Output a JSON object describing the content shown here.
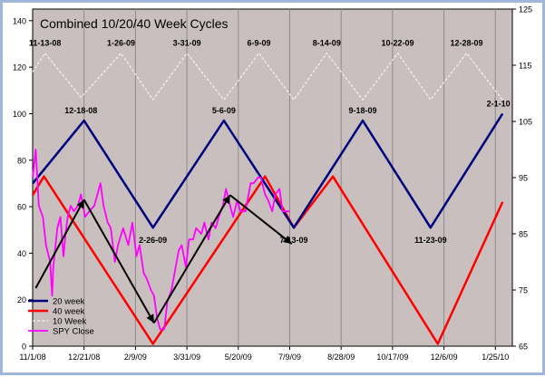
{
  "chart_data": {
    "type": "line",
    "title": "Combined 10/20/40 Week Cycles",
    "x_ticks": [
      "11/1/08",
      "12/21/08",
      "2/9/09",
      "3/31/09",
      "5/20/09",
      "7/9/09",
      "8/28/09",
      "10/17/09",
      "12/6/09",
      "1/25/10"
    ],
    "y_left_ticks": [
      "0",
      "20",
      "40",
      "60",
      "80",
      "100",
      "120",
      "140"
    ],
    "y_right_ticks": [
      "65",
      "75",
      "85",
      "95",
      "105",
      "115",
      "125"
    ],
    "ylim_left": [
      0,
      145
    ],
    "ylim_right": [
      65,
      125
    ],
    "grid": "vertical",
    "legend_position": "bottom-left",
    "colors": {
      "plot_bg": "#c9bfbf",
      "w20": "#00007f",
      "w40": "#ff0000",
      "w10": "#ffffff",
      "spy": "#ff00ff",
      "arrow": "#000000",
      "grid": "#8f8a8a"
    },
    "series": [
      {
        "key": "w20",
        "name": "20 week",
        "points": [
          [
            "11/1/08",
            70
          ],
          [
            "12/21/08",
            97
          ],
          [
            "2/26/09",
            51
          ],
          [
            "5/6/09",
            97
          ],
          [
            "7/13/09",
            51
          ],
          [
            "9/18/09",
            97
          ],
          [
            "11/23/09",
            51
          ],
          [
            "2/1/10",
            100
          ]
        ]
      },
      {
        "key": "w40",
        "name": "40 week",
        "points": [
          [
            "11/1/08",
            65
          ],
          [
            "11/12/08",
            73
          ],
          [
            "2/26/09",
            1
          ],
          [
            "6/15/09",
            73
          ],
          [
            "7/13/09",
            51
          ],
          [
            "8/20/09",
            73
          ],
          [
            "11/30/09",
            1
          ],
          [
            "2/1/10",
            62
          ]
        ]
      },
      {
        "key": "w10",
        "name": "10 Week",
        "points": [
          [
            "11/1/08",
            118
          ],
          [
            "11/13/08",
            126
          ],
          [
            "12/18/08",
            107
          ],
          [
            "1/26/09",
            126
          ],
          [
            "2/26/09",
            106
          ],
          [
            "3/31/09",
            126
          ],
          [
            "5/6/09",
            106
          ],
          [
            "6/9/09",
            126
          ],
          [
            "7/13/09",
            106
          ],
          [
            "8/14/09",
            126
          ],
          [
            "9/18/09",
            106
          ],
          [
            "10/22/09",
            126
          ],
          [
            "11/23/09",
            106
          ],
          [
            "12/28/09",
            126
          ],
          [
            "2/1/10",
            106
          ]
        ]
      },
      {
        "key": "spy",
        "name": "SPY Close",
        "points": [
          [
            "11/1/08",
            95
          ],
          [
            "11/4/08",
            100
          ],
          [
            "11/7/08",
            90
          ],
          [
            "11/11/08",
            88
          ],
          [
            "11/14/08",
            83
          ],
          [
            "11/18/08",
            80
          ],
          [
            "11/20/08",
            74
          ],
          [
            "11/21/08",
            79
          ],
          [
            "11/25/08",
            86
          ],
          [
            "11/28/08",
            88
          ],
          [
            "12/1/08",
            81
          ],
          [
            "12/3/08",
            85
          ],
          [
            "12/5/08",
            88
          ],
          [
            "12/8/08",
            90
          ],
          [
            "12/11/08",
            89
          ],
          [
            "12/15/08",
            90
          ],
          [
            "12/18/08",
            92
          ],
          [
            "12/22/08",
            88
          ],
          [
            "12/26/08",
            89
          ],
          [
            "12/31/08",
            90
          ],
          [
            "1/6/09",
            94
          ],
          [
            "1/9/09",
            90
          ],
          [
            "1/13/09",
            87
          ],
          [
            "1/16/09",
            86
          ],
          [
            "1/20/09",
            80
          ],
          [
            "1/23/09",
            83
          ],
          [
            "1/28/09",
            86
          ],
          [
            "2/2/09",
            83
          ],
          [
            "2/6/09",
            87
          ],
          [
            "2/10/09",
            81
          ],
          [
            "2/13/09",
            83
          ],
          [
            "2/17/09",
            78
          ],
          [
            "2/20/09",
            77
          ],
          [
            "2/24/09",
            75
          ],
          [
            "2/27/09",
            74
          ],
          [
            "3/2/09",
            70
          ],
          [
            "3/5/09",
            68
          ],
          [
            "3/9/09",
            68
          ],
          [
            "3/12/09",
            73
          ],
          [
            "3/16/09",
            75
          ],
          [
            "3/19/09",
            78
          ],
          [
            "3/23/09",
            82
          ],
          [
            "3/26/09",
            83
          ],
          [
            "3/30/09",
            79
          ],
          [
            "4/2/09",
            84
          ],
          [
            "4/6/09",
            84
          ],
          [
            "4/9/09",
            86
          ],
          [
            "4/14/09",
            85
          ],
          [
            "4/17/09",
            87
          ],
          [
            "4/21/09",
            84
          ],
          [
            "4/24/09",
            87
          ],
          [
            "4/28/09",
            86
          ],
          [
            "5/1/09",
            88
          ],
          [
            "5/5/09",
            90
          ],
          [
            "5/8/09",
            93
          ],
          [
            "5/12/09",
            90
          ],
          [
            "5/15/09",
            88
          ],
          [
            "5/19/09",
            91
          ],
          [
            "5/22/09",
            89
          ],
          [
            "5/27/09",
            89
          ],
          [
            "6/1/09",
            94
          ],
          [
            "6/4/09",
            94
          ],
          [
            "6/8/09",
            95
          ],
          [
            "6/11/09",
            95
          ],
          [
            "6/15/09",
            92
          ],
          [
            "6/18/09",
            91
          ],
          [
            "6/22/09",
            89
          ],
          [
            "6/25/09",
            92
          ],
          [
            "6/29/09",
            93
          ],
          [
            "7/2/09",
            89
          ],
          [
            "7/6/09",
            89
          ],
          [
            "7/9/09",
            89
          ]
        ]
      }
    ],
    "arrows": [
      {
        "from": [
          "11/4/08",
          25
        ],
        "to": [
          "12/21/08",
          63
        ]
      },
      {
        "from": [
          "12/21/08",
          63
        ],
        "to": [
          "2/27/09",
          10
        ]
      },
      {
        "from": [
          "2/27/09",
          10
        ],
        "to": [
          "5/12/09",
          65
        ]
      },
      {
        "from": [
          "5/12/09",
          65
        ],
        "to": [
          "7/11/09",
          44
        ]
      }
    ],
    "annotations": [
      {
        "text": "11-13-08",
        "x": "11/13/08",
        "y": 126,
        "pos": "above"
      },
      {
        "text": "1-26-09",
        "x": "1/26/09",
        "y": 126,
        "pos": "above"
      },
      {
        "text": "3-31-09",
        "x": "3/31/09",
        "y": 126,
        "pos": "above"
      },
      {
        "text": "6-9-09",
        "x": "6/9/09",
        "y": 126,
        "pos": "above"
      },
      {
        "text": "8-14-09",
        "x": "8/14/09",
        "y": 126,
        "pos": "above"
      },
      {
        "text": "10-22-09",
        "x": "10/22/09",
        "y": 126,
        "pos": "above"
      },
      {
        "text": "12-28-09",
        "x": "12/28/09",
        "y": 126,
        "pos": "above"
      },
      {
        "text": "12-18-08",
        "x": "12/18/08",
        "y": 97,
        "pos": "above"
      },
      {
        "text": "5-6-09",
        "x": "5/6/09",
        "y": 97,
        "pos": "above"
      },
      {
        "text": "9-18-09",
        "x": "9/18/09",
        "y": 97,
        "pos": "above"
      },
      {
        "text": "2-1-10",
        "x": "1/28/10",
        "y": 100,
        "pos": "above"
      },
      {
        "text": "2-26-09",
        "x": "2/26/09",
        "y": 51,
        "pos": "below"
      },
      {
        "text": "7-13-09",
        "x": "7/13/09",
        "y": 51,
        "pos": "below"
      },
      {
        "text": "11-23-09",
        "x": "11/23/09",
        "y": 51,
        "pos": "below"
      }
    ]
  }
}
